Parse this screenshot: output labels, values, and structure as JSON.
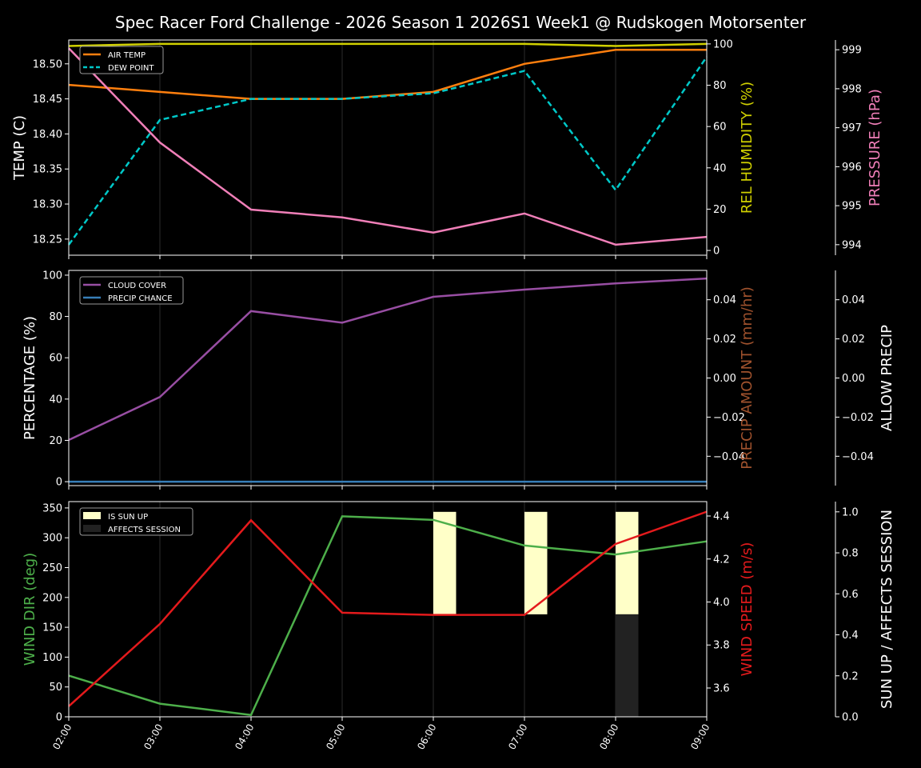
{
  "title": "Spec Racer Ford Challenge - 2026 Season 1 2026S1 Week1 @ Rudskogen Motorsenter",
  "chart_data": [
    {
      "type": "line",
      "x": [
        "02:00",
        "03:00",
        "04:00",
        "05:00",
        "06:00",
        "07:00",
        "08:00",
        "09:00"
      ],
      "ylabel": "TEMP (C)",
      "ylim": [
        18.227,
        18.534
      ],
      "yticks": [
        "18.25",
        "18.30",
        "18.35",
        "18.40",
        "18.45",
        "18.50"
      ],
      "ylabel_right": "REL HUMIDITY (%)",
      "ylim_right": [
        -2.3,
        101.9
      ],
      "yticks_right": [
        "0",
        "20",
        "40",
        "60",
        "80",
        "100"
      ],
      "ylabel_right2": "PRESSURE (hPa)",
      "ylim_right2": [
        993.73,
        999.25
      ],
      "yticks_right2": [
        "994",
        "995",
        "996",
        "997",
        "998",
        "999"
      ],
      "legend": "top-left",
      "series": [
        {
          "name": "AIR TEMP",
          "axis": "left",
          "color": "#ff7f0e",
          "values": [
            18.47,
            18.46,
            18.45,
            18.45,
            18.46,
            18.5,
            18.52,
            18.52
          ]
        },
        {
          "name": "DEW POINT",
          "axis": "left",
          "color": "#00c8c8",
          "dashed": true,
          "values": [
            18.242,
            18.42,
            18.45,
            18.45,
            18.458,
            18.49,
            18.32,
            18.51
          ]
        },
        {
          "axis": "right",
          "color": "#d0d000",
          "values": [
            99,
            100,
            100,
            100,
            100,
            100,
            99,
            100
          ]
        },
        {
          "axis": "right2",
          "color": "#f07fb8",
          "values": [
            999.04,
            996.62,
            994.9,
            994.7,
            994.31,
            994.8,
            994.0,
            994.2
          ]
        }
      ]
    },
    {
      "type": "line",
      "x": [
        "02:00",
        "03:00",
        "04:00",
        "05:00",
        "06:00",
        "07:00",
        "08:00",
        "09:00"
      ],
      "ylabel": "PERCENTAGE (%)",
      "ylim": [
        -1.9,
        102.3
      ],
      "yticks": [
        "0",
        "20",
        "40",
        "60",
        "80",
        "100"
      ],
      "ylabel_right": "PRECIP AMOUNT (mm/hr)",
      "ylim_right": [
        -0.055,
        0.055
      ],
      "yticks_right": [
        "−0.04",
        "−0.02",
        "0.00",
        "0.02",
        "0.04"
      ],
      "ylabel_right2": "ALLOW PRECIP",
      "ylim_right2": [
        -0.055,
        0.055
      ],
      "yticks_right2": [
        "−0.04",
        "−0.02",
        "0.00",
        "0.02",
        "0.04"
      ],
      "legend": "top-left",
      "series": [
        {
          "name": "CLOUD COVER",
          "axis": "left",
          "color": "#984ea3",
          "values": [
            20.2,
            41,
            82.6,
            77,
            89.5,
            93,
            96,
            98.4
          ]
        },
        {
          "name": "PRECIP CHANCE",
          "axis": "left",
          "color": "#377eb8",
          "values": [
            0,
            0,
            0,
            0,
            0,
            0,
            0,
            0
          ]
        }
      ]
    },
    {
      "type": "line",
      "x": [
        "02:00",
        "03:00",
        "04:00",
        "05:00",
        "06:00",
        "07:00",
        "08:00",
        "09:00"
      ],
      "ylabel": "WIND DIR (deg)",
      "ylim": [
        0,
        360.6
      ],
      "yticks": [
        "0",
        "50",
        "100",
        "150",
        "200",
        "250",
        "300",
        "350"
      ],
      "ylabel_right": "WIND SPEED (m/s)",
      "ylim_right": [
        3.466,
        4.467
      ],
      "yticks_right": [
        "3.6",
        "3.8",
        "4.0",
        "4.2",
        "4.4"
      ],
      "ylabel_right2": "SUN UP / AFFECTS SESSION",
      "ylim_right2": [
        0,
        1.05
      ],
      "yticks_right2": [
        "0.0",
        "0.2",
        "0.4",
        "0.6",
        "0.8",
        "1.0"
      ],
      "legend": "top-left",
      "series": [
        {
          "axis": "left",
          "color": "#4daf4a",
          "values": [
            69,
            22,
            3,
            336,
            330,
            287,
            272,
            294
          ]
        },
        {
          "axis": "right",
          "color": "#e41a1c",
          "values": [
            3.515,
            3.898,
            4.38,
            3.95,
            3.94,
            3.94,
            4.27,
            4.42
          ]
        }
      ],
      "bars": [
        {
          "name": "IS SUN UP",
          "color": "#ffffc8",
          "values": [
            0,
            0,
            0,
            0,
            1,
            1,
            1,
            0
          ]
        },
        {
          "name": "AFFECTS SESSION",
          "color": "#222222",
          "values": [
            0,
            0,
            0,
            0,
            0,
            0,
            1,
            0
          ]
        }
      ]
    }
  ]
}
